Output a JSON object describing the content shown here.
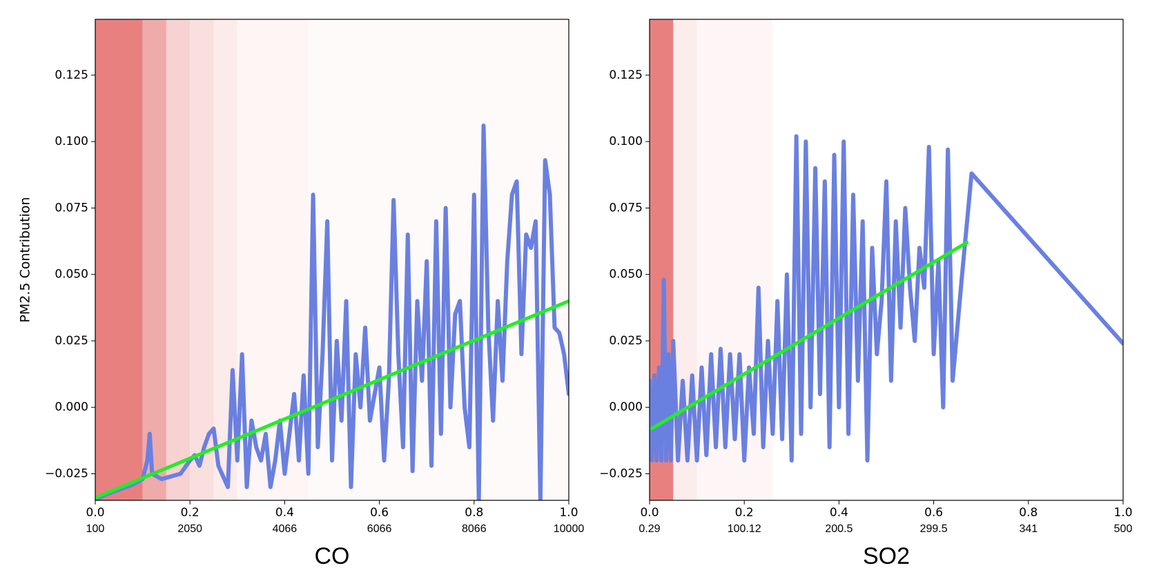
{
  "chart_data": [
    {
      "type": "line",
      "xlabel": "CO",
      "ylabel": "PM2.5 Contribution",
      "xlim": [
        0,
        1
      ],
      "ylim": [
        -0.035,
        0.146
      ],
      "xticks": [
        {
          "value": 0,
          "label": "0.0"
        },
        0.2,
        0.4,
        0.6,
        0.8,
        {
          "value": 1,
          "label": "1.0"
        }
      ],
      "xticks_secondary": [
        "100",
        "2050",
        "4066",
        "6066",
        "8066",
        "10000"
      ],
      "yticks": [
        {
          "value": -0.025,
          "label": "−0.025"
        },
        {
          "value": 0,
          "label": "0.000"
        },
        0.025,
        {
          "value": 0.05,
          "label": "0.050"
        },
        0.075,
        {
          "value": 0.1,
          "label": "0.100"
        },
        0.125
      ],
      "bands": [
        {
          "x": [
            0,
            0.1
          ],
          "color": "#e88080"
        },
        {
          "x": [
            0.1,
            0.15
          ],
          "color": "#efaaaa"
        },
        {
          "x": [
            0.15,
            0.2
          ],
          "color": "#f7d2d2"
        },
        {
          "x": [
            0.2,
            0.25
          ],
          "color": "#fadfdf"
        },
        {
          "x": [
            0.25,
            0.3
          ],
          "color": "#fcebeb"
        },
        {
          "x": [
            0.3,
            0.45
          ],
          "color": "#fef5f5"
        },
        {
          "x": [
            0.45,
            1
          ],
          "color": "#fefafa"
        }
      ],
      "series": [
        {
          "color": "#6a80e0",
          "x": [
            0,
            0.02,
            0.05,
            0.08,
            0.1,
            0.11,
            0.115,
            0.12,
            0.14,
            0.16,
            0.18,
            0.2,
            0.21,
            0.22,
            0.23,
            0.24,
            0.25,
            0.26,
            0.28,
            0.29,
            0.3,
            0.31,
            0.32,
            0.33,
            0.34,
            0.35,
            0.36,
            0.37,
            0.38,
            0.39,
            0.4,
            0.41,
            0.42,
            0.43,
            0.44,
            0.45,
            0.46,
            0.47,
            0.48,
            0.49,
            0.5,
            0.51,
            0.52,
            0.53,
            0.54,
            0.55,
            0.56,
            0.57,
            0.58,
            0.6,
            0.61,
            0.62,
            0.63,
            0.64,
            0.65,
            0.66,
            0.67,
            0.68,
            0.69,
            0.7,
            0.71,
            0.72,
            0.73,
            0.74,
            0.75,
            0.76,
            0.77,
            0.78,
            0.79,
            0.8,
            0.81,
            0.82,
            0.83,
            0.84,
            0.85,
            0.86,
            0.87,
            0.88,
            0.89,
            0.9,
            0.91,
            0.92,
            0.93,
            0.94,
            0.95,
            0.96,
            0.97,
            0.98,
            0.99,
            1.0
          ],
          "values": [
            -0.035,
            -0.033,
            -0.031,
            -0.029,
            -0.027,
            -0.02,
            -0.01,
            -0.025,
            -0.027,
            -0.026,
            -0.025,
            -0.02,
            -0.018,
            -0.022,
            -0.015,
            -0.01,
            -0.008,
            -0.022,
            -0.03,
            0.014,
            -0.02,
            0.02,
            -0.03,
            -0.005,
            -0.015,
            -0.02,
            -0.01,
            -0.03,
            -0.02,
            -0.005,
            -0.025,
            -0.01,
            0.005,
            -0.02,
            0.012,
            -0.025,
            0.08,
            -0.015,
            0.02,
            0.07,
            -0.02,
            0.025,
            -0.005,
            0.04,
            -0.03,
            0.02,
            0.0,
            0.03,
            -0.005,
            0.015,
            -0.02,
            0.01,
            0.078,
            0.02,
            -0.015,
            0.065,
            -0.024,
            0.04,
            0.01,
            0.055,
            -0.022,
            0.07,
            -0.01,
            0.075,
            0.0,
            0.035,
            0.04,
            0.0,
            -0.015,
            0.08,
            -0.035,
            0.106,
            0.03,
            -0.005,
            0.04,
            0.01,
            0.055,
            0.08,
            0.085,
            0.02,
            0.065,
            0.06,
            0.07,
            -0.035,
            0.093,
            0.08,
            0.03,
            0.028,
            0.02,
            0.005
          ]
        },
        {
          "color": "#22ee22",
          "x": [
            0,
            1
          ],
          "values": [
            -0.034,
            0.04
          ]
        }
      ]
    },
    {
      "type": "line",
      "xlabel": "SO2",
      "xlim": [
        0,
        1
      ],
      "ylim": [
        -0.035,
        0.146
      ],
      "xticks": [
        {
          "value": 0,
          "label": "0.0"
        },
        0.2,
        0.4,
        0.6,
        0.8,
        {
          "value": 1,
          "label": "1.0"
        }
      ],
      "xticks_secondary": [
        "0.29",
        "100.12",
        "200.5",
        "299.5",
        "341",
        "500"
      ],
      "yticks": [
        {
          "value": -0.025,
          "label": "−0.025"
        },
        {
          "value": 0,
          "label": "0.000"
        },
        0.025,
        {
          "value": 0.05,
          "label": "0.050"
        },
        0.075,
        {
          "value": 0.1,
          "label": "0.100"
        },
        0.125
      ],
      "bands": [
        {
          "x": [
            0,
            0.05
          ],
          "color": "#e88080"
        },
        {
          "x": [
            0.05,
            0.1
          ],
          "color": "#fcecec"
        },
        {
          "x": [
            0.1,
            0.26
          ],
          "color": "#fef6f6"
        }
      ],
      "series": [
        {
          "color": "#6a80e0",
          "x": [
            0,
            0.005,
            0.01,
            0.015,
            0.02,
            0.025,
            0.03,
            0.035,
            0.04,
            0.045,
            0.05,
            0.06,
            0.07,
            0.08,
            0.09,
            0.1,
            0.11,
            0.12,
            0.13,
            0.14,
            0.15,
            0.16,
            0.17,
            0.18,
            0.19,
            0.2,
            0.21,
            0.22,
            0.23,
            0.24,
            0.25,
            0.26,
            0.27,
            0.28,
            0.29,
            0.3,
            0.31,
            0.32,
            0.33,
            0.34,
            0.35,
            0.36,
            0.37,
            0.38,
            0.39,
            0.4,
            0.41,
            0.42,
            0.43,
            0.44,
            0.45,
            0.46,
            0.47,
            0.48,
            0.49,
            0.5,
            0.51,
            0.52,
            0.53,
            0.54,
            0.55,
            0.56,
            0.57,
            0.58,
            0.59,
            0.6,
            0.61,
            0.62,
            0.63,
            0.64,
            0.66,
            0.68,
            1.0
          ],
          "values": [
            0.01,
            -0.02,
            0.012,
            -0.02,
            0.015,
            -0.02,
            0.048,
            -0.02,
            0.02,
            -0.02,
            0.025,
            -0.02,
            0.01,
            -0.02,
            0.012,
            -0.02,
            0.015,
            -0.018,
            0.02,
            -0.015,
            0.022,
            -0.015,
            0.02,
            -0.012,
            0.02,
            -0.02,
            0.015,
            -0.01,
            0.045,
            -0.015,
            0.025,
            -0.01,
            0.04,
            -0.012,
            0.05,
            -0.02,
            0.102,
            -0.01,
            0.1,
            0.0,
            0.09,
            0.005,
            0.085,
            -0.015,
            0.095,
            0.0,
            0.1,
            -0.01,
            0.08,
            0.01,
            0.07,
            -0.02,
            0.06,
            0.02,
            0.04,
            0.085,
            0.01,
            0.07,
            0.03,
            0.075,
            0.045,
            0.025,
            0.06,
            0.045,
            0.098,
            0.02,
            0.055,
            0.0,
            0.097,
            0.01,
            0.05,
            0.088,
            0.024
          ]
        },
        {
          "color": "#22ee22",
          "x": [
            0.005,
            0.67
          ],
          "values": [
            -0.008,
            0.062
          ]
        }
      ]
    }
  ]
}
